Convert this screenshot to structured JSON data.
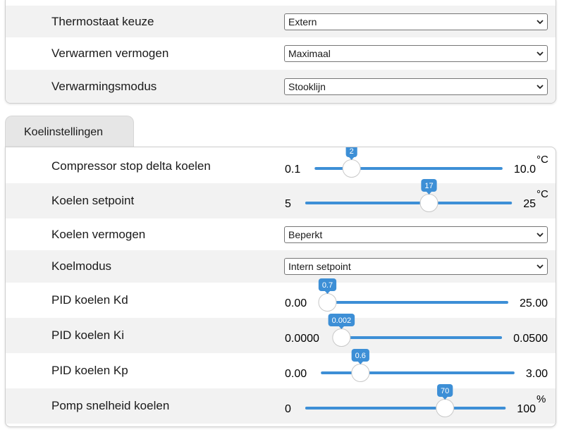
{
  "heating_panel": {
    "rows": [
      {
        "label": "Thermostaat keuze",
        "select": "Extern"
      },
      {
        "label": "Verwarmen vermogen",
        "select": "Maximaal"
      },
      {
        "label": "Verwarmingsmodus",
        "select": "Stooklijn"
      }
    ]
  },
  "cooling_panel": {
    "tab": "Koelinstellingen",
    "rows": [
      {
        "label": "Compressor stop delta koelen",
        "slider": {
          "min": "0.1",
          "max": "10.0",
          "value": "2",
          "unit": "°C"
        }
      },
      {
        "label": "Koelen setpoint",
        "slider": {
          "min": "5",
          "max": "25",
          "value": "17",
          "unit": "°C"
        }
      },
      {
        "label": "Koelen vermogen",
        "select": "Beperkt"
      },
      {
        "label": "Koelmodus",
        "select": "Intern setpoint"
      },
      {
        "label": "PID koelen Kd",
        "slider": {
          "min": "0.00",
          "max": "25.00",
          "value": "0.7"
        }
      },
      {
        "label": "PID koelen Ki",
        "slider": {
          "min": "0.0000",
          "max": "0.0500",
          "value": "0.002"
        }
      },
      {
        "label": "PID koelen Kp",
        "slider": {
          "min": "0.00",
          "max": "3.00",
          "value": "0.6"
        }
      },
      {
        "label": "Pomp snelheid koelen",
        "slider": {
          "min": "0",
          "max": "100",
          "value": "70",
          "unit": "%"
        }
      }
    ]
  }
}
